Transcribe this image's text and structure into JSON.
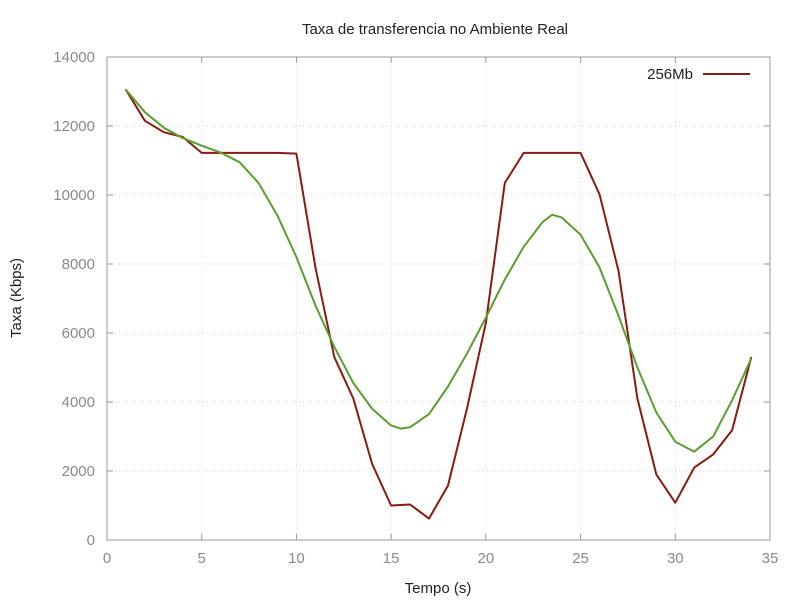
{
  "chart_data": {
    "type": "line",
    "title": "Taxa de transferencia no Ambiente Real",
    "xlabel": "Tempo (s)",
    "ylabel": "Taxa (Kbps)",
    "xlim": [
      0,
      35
    ],
    "ylim": [
      0,
      14000
    ],
    "xticks": [
      0,
      5,
      10,
      15,
      20,
      25,
      30,
      35
    ],
    "yticks": [
      0,
      2000,
      4000,
      6000,
      8000,
      10000,
      12000,
      14000
    ],
    "grid": true,
    "legend_position": "top-right",
    "series": [
      {
        "name": "256Mb",
        "color": "#8b1a10",
        "x": [
          1,
          2,
          3,
          4,
          5,
          6,
          7,
          8,
          9,
          10,
          11,
          12,
          13,
          14,
          15,
          16,
          17,
          18,
          19,
          20,
          21,
          22,
          23,
          24,
          25,
          26,
          27,
          28,
          29,
          30,
          31,
          32,
          33,
          34
        ],
        "y": [
          13050,
          12150,
          11820,
          11680,
          11220,
          11220,
          11220,
          11220,
          11220,
          11200,
          7900,
          5300,
          4100,
          2200,
          1000,
          1030,
          620,
          1580,
          3800,
          6300,
          10350,
          11220,
          11220,
          11220,
          11220,
          10020,
          7800,
          4100,
          1900,
          1080,
          2100,
          2480,
          3180,
          5280
        ]
      },
      {
        "name": "",
        "color": "#5a9e2f",
        "x": [
          1,
          2,
          3,
          4,
          5,
          6,
          7,
          8,
          9,
          10,
          11,
          12,
          13,
          14,
          15,
          15.5,
          16,
          17,
          18,
          19,
          20,
          21,
          22,
          23,
          23.5,
          24,
          25,
          26,
          27,
          28,
          29,
          30,
          31,
          32,
          33,
          34
        ],
        "y": [
          13050,
          12400,
          11950,
          11650,
          11430,
          11230,
          10950,
          10350,
          9400,
          8200,
          6800,
          5600,
          4550,
          3800,
          3320,
          3230,
          3270,
          3650,
          4450,
          5400,
          6450,
          7550,
          8500,
          9220,
          9430,
          9350,
          8850,
          7900,
          6500,
          5000,
          3700,
          2850,
          2560,
          3000,
          4050,
          5250
        ]
      }
    ]
  }
}
